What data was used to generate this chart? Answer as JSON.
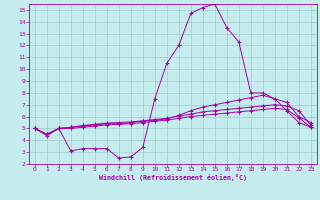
{
  "title": "",
  "xlabel": "Windchill (Refroidissement éolien,°C)",
  "ylabel": "",
  "xlim": [
    -0.5,
    23.5
  ],
  "ylim": [
    2,
    15.5
  ],
  "bg_color": "#c5ecee",
  "line_color": "#aa00aa",
  "grid_color": "#9ecdd0",
  "xticks": [
    0,
    1,
    2,
    3,
    4,
    5,
    6,
    7,
    8,
    9,
    10,
    11,
    12,
    13,
    14,
    15,
    16,
    17,
    18,
    19,
    20,
    21,
    22,
    23
  ],
  "yticks": [
    2,
    3,
    4,
    5,
    6,
    7,
    8,
    9,
    10,
    11,
    12,
    13,
    14,
    15
  ],
  "line1_x": [
    0,
    1,
    2,
    3,
    4,
    5,
    6,
    7,
    8,
    9,
    10,
    11,
    12,
    13,
    14,
    15,
    16,
    17,
    18,
    19,
    20,
    21,
    22,
    23
  ],
  "line1_y": [
    5.0,
    4.4,
    5.0,
    3.1,
    3.3,
    3.3,
    3.3,
    2.5,
    2.6,
    3.4,
    7.5,
    10.5,
    12.0,
    14.7,
    15.2,
    15.5,
    13.5,
    12.3,
    8.0,
    8.0,
    7.5,
    6.5,
    5.5,
    5.1
  ],
  "line2_x": [
    0,
    1,
    2,
    3,
    4,
    5,
    6,
    7,
    8,
    9,
    10,
    11,
    12,
    13,
    14,
    15,
    16,
    17,
    18,
    19,
    20,
    21,
    22,
    23
  ],
  "line2_y": [
    5.0,
    4.5,
    5.0,
    5.1,
    5.2,
    5.3,
    5.4,
    5.4,
    5.5,
    5.6,
    5.7,
    5.8,
    6.1,
    6.5,
    6.8,
    7.0,
    7.2,
    7.4,
    7.6,
    7.8,
    7.5,
    7.2,
    6.0,
    5.5
  ],
  "line3_x": [
    0,
    1,
    2,
    3,
    4,
    5,
    6,
    7,
    8,
    9,
    10,
    11,
    12,
    13,
    14,
    15,
    16,
    17,
    18,
    19,
    20,
    21,
    22,
    23
  ],
  "line3_y": [
    5.0,
    4.5,
    5.0,
    5.1,
    5.25,
    5.35,
    5.45,
    5.5,
    5.55,
    5.65,
    5.75,
    5.85,
    6.05,
    6.2,
    6.4,
    6.5,
    6.6,
    6.7,
    6.8,
    6.9,
    7.0,
    6.9,
    6.5,
    5.3
  ],
  "line4_x": [
    0,
    1,
    2,
    3,
    4,
    5,
    6,
    7,
    8,
    9,
    10,
    11,
    12,
    13,
    14,
    15,
    16,
    17,
    18,
    19,
    20,
    21,
    22,
    23
  ],
  "line4_y": [
    5.0,
    4.5,
    5.0,
    5.0,
    5.1,
    5.2,
    5.3,
    5.35,
    5.4,
    5.5,
    5.6,
    5.7,
    5.85,
    6.0,
    6.1,
    6.2,
    6.3,
    6.4,
    6.5,
    6.6,
    6.7,
    6.6,
    5.9,
    5.1
  ]
}
